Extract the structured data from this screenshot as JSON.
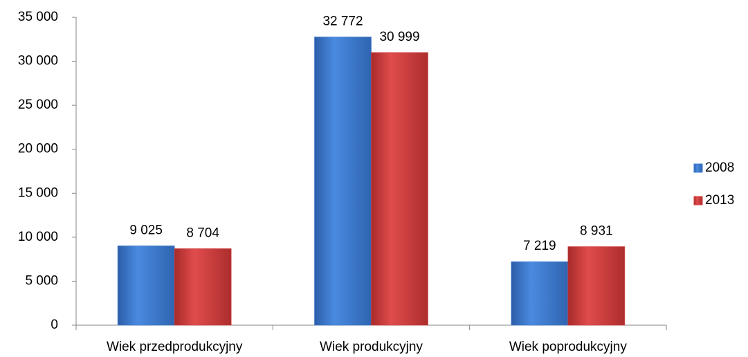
{
  "chart_data": {
    "type": "bar",
    "categories": [
      "Wiek przedprodukcyjny",
      "Wiek produkcyjny",
      "Wiek poprodukcyjny"
    ],
    "series": [
      {
        "name": "2008",
        "color": "#3c7bd0",
        "values": [
          9025,
          32772,
          7219
        ],
        "value_labels": [
          "9 025",
          "32 772",
          "7 219"
        ]
      },
      {
        "name": "2013",
        "color": "#d43d3d",
        "values": [
          8704,
          30999,
          8931
        ],
        "value_labels": [
          "8 704",
          "30 999",
          "8 931"
        ]
      }
    ],
    "ylim": [
      0,
      35000
    ],
    "yticks": [
      0,
      {
        "value": 5000,
        "label": "5 000"
      },
      {
        "value": 10000,
        "label": "10 000"
      },
      {
        "value": 15000,
        "label": "15 000"
      },
      {
        "value": 20000,
        "label": "20 000"
      },
      {
        "value": 25000,
        "label": "25 000"
      },
      {
        "value": 30000,
        "label": "30 000"
      },
      {
        "value": 35000,
        "label": "35 000"
      }
    ],
    "grid": false,
    "legend": "right"
  }
}
